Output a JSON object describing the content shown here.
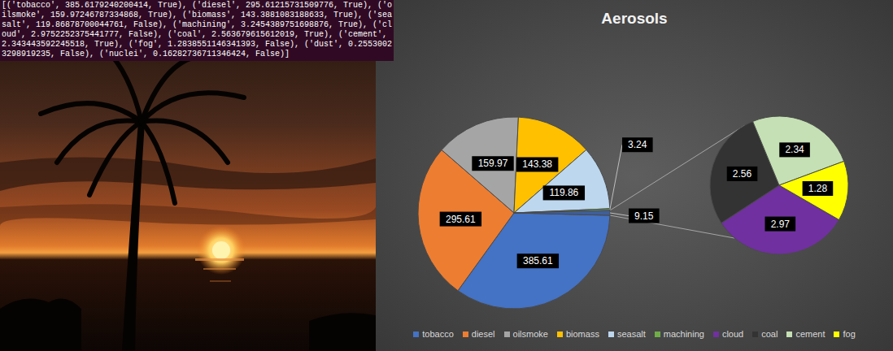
{
  "terminal": {
    "lines": [
      "[('tobacco', 385.6179240200414, True), ('diesel', 295.61215731509776, True), ('o",
      "ilsmoke', 159.97246787334868, True), ('biomass', 143.3881083188633, True), ('sea",
      "salt', 119.86878700044761, False), ('machining', 3.2454389751698876, True), ('cl",
      "oud', 2.9752252375441777, False), ('coal', 2.563679615612019, True), ('cement', ",
      "2.343443592245518, True), ('fog', 1.2838551146341393, False), ('dust', 0.2553002",
      "3298919235, False), ('nuclei', 0.16282736711346424, False)]"
    ]
  },
  "chart_data": [
    {
      "type": "pie",
      "title": "Aerosols",
      "categories": [
        "tobacco",
        "diesel",
        "oilsmoke",
        "biomass",
        "seasalt",
        "machining",
        null
      ],
      "values": [
        385.61,
        295.61,
        159.97,
        143.38,
        119.86,
        3.24,
        9.15
      ],
      "colors": [
        "#4472c4",
        "#ed7d31",
        "#a5a5a5",
        "#ffc000",
        "#bdd7ee",
        "#70ad47",
        "#3f5f9a"
      ],
      "data_labels": true,
      "legend": "bottom"
    },
    {
      "type": "pie",
      "categories": [
        "cloud",
        "coal",
        "cement",
        "fog"
      ],
      "values": [
        2.97,
        2.56,
        2.34,
        1.28
      ],
      "colors": [
        "#7030a0",
        "#333333",
        "#c5e0b4",
        "#ffff00"
      ],
      "data_labels": true,
      "legend": "bottom"
    }
  ]
}
